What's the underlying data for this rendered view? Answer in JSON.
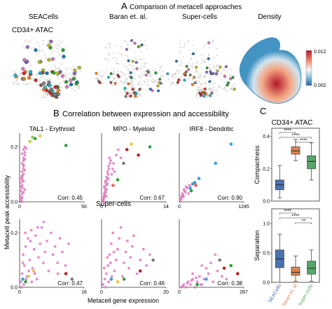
{
  "panel_a": {
    "letter": "A",
    "title": "Comparison of metacell approaches",
    "row_label": "CD34+ ATAC",
    "columns": [
      "SEACells",
      "Baran et. al.",
      "Super-cells",
      "Density"
    ],
    "colorbar_ticks": [
      "0.012",
      "0.002"
    ]
  },
  "panel_b": {
    "letter": "B",
    "title": "Correlation between expression and accessibility",
    "row2_label": "Super-cells",
    "ylabel": "Metacell peak accessibility",
    "xlabel": "Metacell gene expression"
  },
  "panel_c": {
    "letter": "C",
    "title": "CD34+ ATAC"
  },
  "chart_data": [
    {
      "type": "scatter",
      "title": "TAL1 - Erythroid",
      "xlim": [
        0,
        50
      ],
      "ylim": [
        0,
        0.25
      ],
      "xticks": [
        "0",
        "50"
      ],
      "yticks": [
        "0.0",
        "0.2"
      ],
      "corr": "Corr: 0.45",
      "points": [
        [
          1,
          0.01
        ],
        [
          1,
          0.02
        ],
        [
          2,
          0.03
        ],
        [
          1,
          0.04
        ],
        [
          2,
          0.05
        ],
        [
          2,
          0.06
        ],
        [
          1,
          0.07
        ],
        [
          2,
          0.08
        ],
        [
          2,
          0.09
        ],
        [
          3,
          0.1
        ],
        [
          2,
          0.11
        ],
        [
          3,
          0.12
        ],
        [
          3,
          0.13
        ],
        [
          2,
          0.14
        ],
        [
          3,
          0.15
        ],
        [
          3,
          0.16
        ],
        [
          4,
          0.17
        ],
        [
          4,
          0.18
        ],
        [
          3,
          0.19
        ],
        [
          4,
          0.2
        ],
        [
          2,
          0.015
        ],
        [
          3,
          0.035
        ],
        [
          1,
          0.055
        ],
        [
          3,
          0.075
        ],
        [
          2,
          0.095
        ],
        [
          4,
          0.115
        ],
        [
          3,
          0.135
        ],
        [
          4,
          0.155
        ],
        [
          2,
          0.175
        ],
        [
          5,
          0.195
        ],
        [
          1,
          0.005
        ],
        [
          2,
          0.0
        ],
        [
          4,
          0.045
        ],
        [
          1,
          0.085
        ]
      ],
      "colored": [
        [
          8,
          0.22,
          "#b3d44a"
        ],
        [
          12,
          0.23,
          "#2f9e3b"
        ],
        [
          16,
          0.24,
          "#e8c547"
        ],
        [
          36,
          0.205,
          "#2f9e3b"
        ],
        [
          10,
          0.235,
          "#8ccf5a"
        ]
      ]
    },
    {
      "type": "scatter",
      "title": "MPO - Myeloid",
      "xlim": [
        0,
        14
      ],
      "ylim": [
        0,
        0.25
      ],
      "xticks": [
        "0",
        "14"
      ],
      "yticks": [],
      "corr": "Corr: 0.67",
      "points": [
        [
          0.5,
          0.02
        ],
        [
          0.6,
          0.03
        ],
        [
          0.8,
          0.04
        ],
        [
          0.7,
          0.05
        ],
        [
          1,
          0.06
        ],
        [
          0.9,
          0.07
        ],
        [
          1.2,
          0.08
        ],
        [
          1.1,
          0.09
        ],
        [
          1.4,
          0.1
        ],
        [
          1.3,
          0.11
        ],
        [
          1.6,
          0.12
        ],
        [
          1.5,
          0.13
        ],
        [
          1.8,
          0.14
        ],
        [
          2,
          0.15
        ],
        [
          1.7,
          0.16
        ],
        [
          0.4,
          0.01
        ],
        [
          0.5,
          0.015
        ],
        [
          0.7,
          0.025
        ],
        [
          0.9,
          0.035
        ],
        [
          1.1,
          0.045
        ],
        [
          0.6,
          0.055
        ],
        [
          1.3,
          0.065
        ],
        [
          0.8,
          0.075
        ],
        [
          1.5,
          0.085
        ],
        [
          2.2,
          0.1
        ],
        [
          2.4,
          0.12
        ],
        [
          2.6,
          0.14
        ],
        [
          3.2,
          0.17
        ],
        [
          3.6,
          0.19
        ],
        [
          4.2,
          0.16
        ],
        [
          2.8,
          0.11
        ],
        [
          0.3,
          0.005
        ],
        [
          0.5,
          0.0
        ],
        [
          1,
          0.02
        ]
      ],
      "colored": [
        [
          5.5,
          0.19,
          "#b22222"
        ],
        [
          6.5,
          0.21,
          "#e8c547"
        ],
        [
          4.8,
          0.14,
          "#7a7a7a"
        ],
        [
          3.5,
          0.08,
          "#2f9e3b"
        ],
        [
          10.5,
          0.2,
          "#2f9e3b"
        ],
        [
          8,
          0.17,
          "#b22222"
        ],
        [
          2.5,
          0.06,
          "#e06666"
        ]
      ]
    },
    {
      "type": "scatter",
      "title": "IRF8 - Dendritic",
      "xlim": [
        0,
        1245
      ],
      "ylim": [
        0,
        0.25
      ],
      "xticks": [
        "0",
        "1245"
      ],
      "yticks": [],
      "corr": "Corr: 0.90",
      "points": [
        [
          30,
          0.01
        ],
        [
          40,
          0.02
        ],
        [
          60,
          0.03
        ],
        [
          80,
          0.02
        ],
        [
          100,
          0.04
        ],
        [
          50,
          0.015
        ],
        [
          120,
          0.035
        ],
        [
          150,
          0.05
        ],
        [
          70,
          0.025
        ],
        [
          90,
          0.045
        ],
        [
          20,
          0.005
        ],
        [
          200,
          0.06
        ],
        [
          180,
          0.03
        ],
        [
          130,
          0.055
        ]
      ],
      "colored": [
        [
          260,
          0.065,
          "#3aa0d8"
        ],
        [
          300,
          0.07,
          "#3aa0d8"
        ],
        [
          210,
          0.05,
          "#3aa0d8"
        ],
        [
          380,
          0.085,
          "#3aa0d8"
        ],
        [
          700,
          0.14,
          "#3aa0d8"
        ],
        [
          1000,
          0.21,
          "#3aa0d8"
        ],
        [
          230,
          0.04,
          "#2f9e3b"
        ],
        [
          320,
          0.06,
          "#e06666"
        ]
      ]
    },
    {
      "type": "scatter",
      "title": "",
      "xlim": [
        0,
        16
      ],
      "ylim": [
        0,
        0.25
      ],
      "xticks": [
        "0",
        "16"
      ],
      "yticks": [
        "0.0",
        "0.2"
      ],
      "corr": "Corr: 0.47",
      "points": [
        [
          0.3,
          0.02
        ],
        [
          0.6,
          0.05
        ],
        [
          0.9,
          0.12
        ],
        [
          1.2,
          0.08
        ],
        [
          1.5,
          0.15
        ],
        [
          1.8,
          0.04
        ],
        [
          2.1,
          0.18
        ],
        [
          2.5,
          0.1
        ],
        [
          2.9,
          0.21
        ],
        [
          3.2,
          0.07
        ],
        [
          3.6,
          0.14
        ],
        [
          4.0,
          0.19
        ],
        [
          4.3,
          0.03
        ],
        [
          4.7,
          0.11
        ],
        [
          5.1,
          0.16
        ],
        [
          5.5,
          0.22
        ],
        [
          5.9,
          0.09
        ],
        [
          6.3,
          0.13
        ],
        [
          6.8,
          0.17
        ],
        [
          7.2,
          0.06
        ],
        [
          7.8,
          0.2
        ],
        [
          8.3,
          0.12
        ],
        [
          8.8,
          0.15
        ],
        [
          9.4,
          0.09
        ],
        [
          10,
          0.18
        ],
        [
          10.6,
          0.13
        ],
        [
          11.4,
          0.08
        ],
        [
          12.2,
          0.16
        ],
        [
          0.5,
          0.0
        ],
        [
          1,
          0.01
        ],
        [
          1.6,
          0.03
        ],
        [
          2.3,
          0.06
        ],
        [
          3,
          0.02
        ],
        [
          3.8,
          0.05
        ],
        [
          0.8,
          0.09
        ],
        [
          1.4,
          0.2
        ],
        [
          2.7,
          0.17
        ],
        [
          4.5,
          0.22
        ],
        [
          6,
          0.24
        ],
        [
          9.5,
          0.05
        ]
      ],
      "colored": [
        [
          1.5,
          0.02,
          "#2f9e3b"
        ],
        [
          2.2,
          0.04,
          "#b3d44a"
        ],
        [
          3.5,
          0.06,
          "#e8c547"
        ],
        [
          11.5,
          0.05,
          "#b22222"
        ],
        [
          13,
          0.03,
          "#7a7a7a"
        ],
        [
          0.8,
          0.03,
          "#3aa0d8"
        ]
      ]
    },
    {
      "type": "scatter",
      "title": "",
      "xlim": [
        0,
        20
      ],
      "ylim": [
        0,
        0.25
      ],
      "xticks": [
        "0",
        "20"
      ],
      "yticks": [],
      "corr": "Corr: 0.46",
      "points": [
        [
          0.5,
          0.01
        ],
        [
          1,
          0.03
        ],
        [
          1.5,
          0.05
        ],
        [
          2,
          0.08
        ],
        [
          2.5,
          0.12
        ],
        [
          3,
          0.16
        ],
        [
          3.5,
          0.2
        ],
        [
          4,
          0.06
        ],
        [
          4.5,
          0.1
        ],
        [
          5,
          0.14
        ],
        [
          5.5,
          0.18
        ],
        [
          6,
          0.22
        ],
        [
          6.5,
          0.04
        ],
        [
          7,
          0.09
        ],
        [
          7.5,
          0.13
        ],
        [
          8,
          0.17
        ],
        [
          8.5,
          0.07
        ],
        [
          9,
          0.11
        ],
        [
          9.5,
          0.15
        ],
        [
          10,
          0.19
        ],
        [
          11,
          0.05
        ],
        [
          12,
          0.1
        ],
        [
          13,
          0.14
        ],
        [
          1.2,
          0.0
        ],
        [
          2.2,
          0.02
        ],
        [
          3.2,
          0.04
        ],
        [
          0.8,
          0.07
        ],
        [
          1.8,
          0.11
        ],
        [
          2.8,
          0.09
        ],
        [
          3.8,
          0.13
        ],
        [
          14,
          0.08
        ],
        [
          15,
          0.12
        ]
      ],
      "colored": [
        [
          12,
          0.06,
          "#b22222"
        ],
        [
          7,
          0.03,
          "#2f9e3b"
        ],
        [
          5,
          0.02,
          "#e8c547"
        ],
        [
          3,
          0.03,
          "#3aa0d8"
        ],
        [
          16,
          0.1,
          "#7a7a7a"
        ]
      ]
    },
    {
      "type": "scatter",
      "title": "",
      "xlim": [
        0,
        287
      ],
      "ylim": [
        0,
        0.25
      ],
      "xticks": [
        "0",
        "287"
      ],
      "yticks": [],
      "corr": "Corr: 0.38",
      "points": [
        [
          10,
          0.0
        ],
        [
          20,
          0.01
        ],
        [
          30,
          0.0
        ],
        [
          40,
          0.02
        ],
        [
          50,
          0.01
        ],
        [
          60,
          0.03
        ],
        [
          70,
          0.0
        ],
        [
          80,
          0.02
        ],
        [
          90,
          0.04
        ],
        [
          100,
          0.01
        ],
        [
          110,
          0.03
        ],
        [
          130,
          0.05
        ],
        [
          150,
          0.02
        ],
        [
          170,
          0.06
        ],
        [
          190,
          0.04
        ],
        [
          210,
          0.03
        ],
        [
          15,
          0.005
        ],
        [
          35,
          0.015
        ],
        [
          55,
          0.025
        ],
        [
          75,
          0.035
        ],
        [
          95,
          0.01
        ],
        [
          120,
          0.07
        ],
        [
          140,
          0.09
        ],
        [
          160,
          0.12
        ],
        [
          60,
          0.05
        ],
        [
          100,
          0.08
        ]
      ],
      "colored": [
        [
          200,
          0.07,
          "#b22222"
        ],
        [
          230,
          0.08,
          "#2f9e3b"
        ],
        [
          260,
          0.05,
          "#b22222"
        ],
        [
          120,
          0.03,
          "#3aa0d8"
        ],
        [
          80,
          0.01,
          "#2f9e3b"
        ],
        [
          180,
          0.1,
          "#7a7a7a"
        ]
      ]
    },
    {
      "type": "box",
      "title": "",
      "ylabel": "Compactness",
      "ylim": [
        0,
        0.45
      ],
      "yticks": [
        {
          "v": 0,
          "l": "0.0"
        },
        {
          "v": 0.2,
          "l": "0.2"
        },
        {
          "v": 0.4,
          "l": "0.4"
        }
      ],
      "boxes": [
        {
          "name": "SEACells",
          "color": "#4c72b0",
          "q1": 0.07,
          "med": 0.1,
          "q3": 0.13,
          "wl": 0.02,
          "wh": 0.22
        },
        {
          "name": "Baran et. al",
          "color": "#dd8452",
          "q1": 0.29,
          "med": 0.31,
          "q3": 0.335,
          "wl": 0.25,
          "wh": 0.38
        },
        {
          "name": "Super-cells",
          "color": "#55a868",
          "q1": 0.2,
          "med": 0.245,
          "q3": 0.28,
          "wl": 0.13,
          "wh": 0.36
        }
      ],
      "sig": [
        {
          "a": 0,
          "b": 1,
          "label": "****"
        },
        {
          "a": 0,
          "b": 2,
          "label": "****"
        },
        {
          "a": 1,
          "b": 2,
          "label": "****"
        }
      ]
    },
    {
      "type": "box",
      "title": "",
      "ylabel": "Separation",
      "ylim": [
        0,
        1.25
      ],
      "yticks": [
        {
          "v": 0,
          "l": "0.0"
        },
        {
          "v": 0.5,
          "l": "0.5"
        },
        {
          "v": 1,
          "l": "1.0"
        }
      ],
      "boxes": [
        {
          "name": "SEACells",
          "color": "#4c72b0",
          "q1": 0.25,
          "med": 0.4,
          "q3": 0.55,
          "wl": 0.0,
          "wh": 0.82
        },
        {
          "name": "Baran et. al",
          "color": "#dd8452",
          "q1": 0.12,
          "med": 0.17,
          "q3": 0.26,
          "wl": 0.02,
          "wh": 0.45
        },
        {
          "name": "Super-cells",
          "color": "#55a868",
          "q1": 0.14,
          "med": 0.24,
          "q3": 0.36,
          "wl": 0.02,
          "wh": 0.55
        }
      ],
      "sig": [
        {
          "a": 0,
          "b": 1,
          "label": "****"
        },
        {
          "a": 0,
          "b": 2,
          "label": "****"
        },
        {
          "a": 1,
          "b": 2,
          "label": "**"
        }
      ]
    }
  ]
}
